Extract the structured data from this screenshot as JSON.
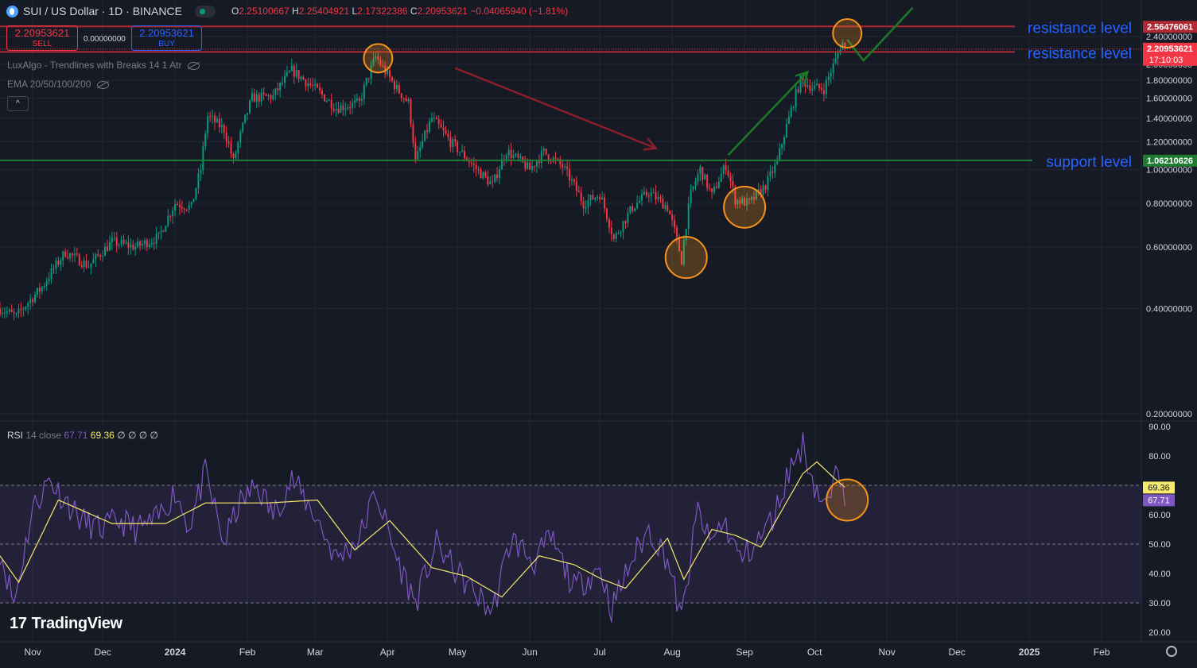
{
  "header": {
    "symbol": "SUI / US Dollar · 1D · BINANCE",
    "open_key": "O",
    "open": "2.25100667",
    "high_key": "H",
    "high": "2.25404921",
    "low_key": "L",
    "low": "2.17322386",
    "close_key": "C",
    "close": "2.20953621",
    "change": "−0.04065940 (−1.81%)"
  },
  "trade": {
    "sell_price": "2.20953621",
    "sell_label": "SELL",
    "spread": "0.00000000",
    "buy_price": "2.20953621",
    "buy_label": "BUY"
  },
  "indicators": [
    {
      "label": "LuxAlgo - Trendlines with Breaks 14 1 Atr"
    },
    {
      "label": "EMA 20/50/100/200"
    }
  ],
  "collapse_glyph": "^",
  "rsi_legend": {
    "name": "RSI",
    "params": "14 close",
    "rsi": "67.71",
    "ma": "69.36",
    "extra": "∅ ∅ ∅ ∅"
  },
  "branding": {
    "logo_mark": "17",
    "name": "TradingView"
  },
  "colors": {
    "background": "#161a25",
    "grid": "#232632",
    "up": "#089981",
    "down": "#f23645",
    "resistance": "#b22833",
    "support": "#1e7d32",
    "annotation_text": "#2962ff",
    "circle": "#f7931a",
    "arrow_red": "#8b1e2b",
    "arrow_green": "#1c7a26",
    "rsi": "#7e57c2",
    "rsi_ma": "#f7e96b"
  },
  "chart_data": [
    {
      "type": "candlestick",
      "title": "SUI / US Dollar · 1D · BINANCE",
      "yscale": "log",
      "ylim": [
        0.18,
        2.8
      ],
      "y_ticks": [
        "0.20000000",
        "0.40000000",
        "0.60000000",
        "0.80000000",
        "1.00000000",
        "1.20000000",
        "1.40000000",
        "1.60000000",
        "1.80000000",
        "2.00000000",
        "2.40000000"
      ],
      "y_tick_values": [
        0.2,
        0.4,
        0.6,
        0.8,
        1.0,
        1.2,
        1.4,
        1.6,
        1.8,
        2.0,
        2.4
      ],
      "x_ticks": [
        "Nov",
        "Dec",
        "2024",
        "Feb",
        "Mar",
        "Apr",
        "May",
        "Jun",
        "Jul",
        "Aug",
        "Sep",
        "Oct",
        "Nov",
        "Dec",
        "2025",
        "Feb"
      ],
      "x_tick_dates": [
        "2023-11-01",
        "2023-12-01",
        "2024-01-01",
        "2024-02-01",
        "2024-03-01",
        "2024-04-01",
        "2024-05-01",
        "2024-06-01",
        "2024-07-01",
        "2024-08-01",
        "2024-09-01",
        "2024-10-01",
        "2024-11-01",
        "2024-12-01",
        "2025-01-01",
        "2025-02-01"
      ],
      "xlim": [
        "2023-10-18",
        "2025-02-18"
      ],
      "price_anchors": [
        {
          "date": "2023-10-18",
          "price": 0.4
        },
        {
          "date": "2023-10-25",
          "price": 0.38
        },
        {
          "date": "2023-11-05",
          "price": 0.46
        },
        {
          "date": "2023-11-15",
          "price": 0.58
        },
        {
          "date": "2023-11-25",
          "price": 0.53
        },
        {
          "date": "2023-12-05",
          "price": 0.62
        },
        {
          "date": "2023-12-15",
          "price": 0.6
        },
        {
          "date": "2023-12-25",
          "price": 0.64
        },
        {
          "date": "2024-01-01",
          "price": 0.8
        },
        {
          "date": "2024-01-08",
          "price": 0.78
        },
        {
          "date": "2024-01-12",
          "price": 1.0
        },
        {
          "date": "2024-01-15",
          "price": 1.42
        },
        {
          "date": "2024-01-22",
          "price": 1.3
        },
        {
          "date": "2024-01-26",
          "price": 1.05
        },
        {
          "date": "2024-02-03",
          "price": 1.6
        },
        {
          "date": "2024-02-12",
          "price": 1.62
        },
        {
          "date": "2024-02-20",
          "price": 1.92
        },
        {
          "date": "2024-03-01",
          "price": 1.7
        },
        {
          "date": "2024-03-10",
          "price": 1.5
        },
        {
          "date": "2024-03-20",
          "price": 1.55
        },
        {
          "date": "2024-03-27",
          "price": 2.1
        },
        {
          "date": "2024-03-30",
          "price": 1.95
        },
        {
          "date": "2024-04-05",
          "price": 1.7
        },
        {
          "date": "2024-04-10",
          "price": 1.55
        },
        {
          "date": "2024-04-13",
          "price": 1.05
        },
        {
          "date": "2024-04-20",
          "price": 1.4
        },
        {
          "date": "2024-04-28",
          "price": 1.2
        },
        {
          "date": "2024-05-08",
          "price": 1.02
        },
        {
          "date": "2024-05-16",
          "price": 0.9
        },
        {
          "date": "2024-05-22",
          "price": 1.13
        },
        {
          "date": "2024-06-01",
          "price": 1.0
        },
        {
          "date": "2024-06-07",
          "price": 1.12
        },
        {
          "date": "2024-06-15",
          "price": 1.02
        },
        {
          "date": "2024-06-24",
          "price": 0.8
        },
        {
          "date": "2024-07-01",
          "price": 0.85
        },
        {
          "date": "2024-07-07",
          "price": 0.63
        },
        {
          "date": "2024-07-15",
          "price": 0.78
        },
        {
          "date": "2024-07-22",
          "price": 0.86
        },
        {
          "date": "2024-07-30",
          "price": 0.78
        },
        {
          "date": "2024-08-05",
          "price": 0.55
        },
        {
          "date": "2024-08-09",
          "price": 0.85
        },
        {
          "date": "2024-08-13",
          "price": 1.0
        },
        {
          "date": "2024-08-18",
          "price": 0.84
        },
        {
          "date": "2024-08-24",
          "price": 1.03
        },
        {
          "date": "2024-08-28",
          "price": 0.82
        },
        {
          "date": "2024-09-03",
          "price": 0.8
        },
        {
          "date": "2024-09-10",
          "price": 0.9
        },
        {
          "date": "2024-09-15",
          "price": 1.05
        },
        {
          "date": "2024-09-20",
          "price": 1.4
        },
        {
          "date": "2024-09-25",
          "price": 1.8
        },
        {
          "date": "2024-09-30",
          "price": 1.72
        },
        {
          "date": "2024-10-05",
          "price": 1.7
        },
        {
          "date": "2024-10-10",
          "price": 2.05
        },
        {
          "date": "2024-10-12",
          "price": 2.25
        },
        {
          "date": "2024-10-13",
          "price": 2.3
        },
        {
          "date": "2024-10-14",
          "price": 2.21
        }
      ],
      "price_points_note": "",
      "horizontal_levels": [
        {
          "label": "resistance level",
          "value": 2.56476061,
          "badge": "2.56476061",
          "color": "#b22833"
        },
        {
          "label": "resistance level",
          "value": 2.16936242,
          "badge": "2.16936242",
          "color": "#b22833"
        },
        {
          "label": "support level",
          "value": 1.06210626,
          "badge": "1.06210626",
          "color": "#1e7d32"
        }
      ],
      "last_price": {
        "value": 2.20953621,
        "badge": "2.20953621",
        "countdown": "17:10:03"
      },
      "circles": [
        {
          "date": "2024-03-28",
          "price": 2.08
        },
        {
          "date": "2024-08-07",
          "price": 0.56
        },
        {
          "date": "2024-09-01",
          "price": 0.78
        },
        {
          "date": "2024-10-15",
          "price": 2.45
        }
      ],
      "arrows": [
        {
          "color": "red",
          "from": {
            "date": "2024-04-30",
            "price": 1.95
          },
          "to": {
            "date": "2024-07-25",
            "price": 1.15
          }
        },
        {
          "color": "green",
          "from": {
            "date": "2024-08-25",
            "price": 1.1
          },
          "to": {
            "date": "2024-09-28",
            "price": 1.9
          }
        },
        {
          "color": "green",
          "path": [
            {
              "date": "2024-10-15",
              "price": 2.35
            },
            {
              "date": "2024-10-22",
              "price": 2.05
            },
            {
              "date": "2024-11-12",
              "price": 2.9
            }
          ]
        }
      ]
    },
    {
      "type": "line",
      "title": "RSI",
      "ylim": [
        18,
        92
      ],
      "y_ticks": [
        "20.00",
        "30.00",
        "40.00",
        "50.00",
        "60.00",
        "70.00",
        "80.00",
        "90.00"
      ],
      "y_tick_values": [
        20,
        30,
        40,
        50,
        60,
        70,
        80,
        90
      ],
      "band": [
        30,
        70
      ],
      "midline": 50,
      "rsi_anchors": [
        {
          "date": "2023-10-18",
          "value": 48
        },
        {
          "date": "2023-10-24",
          "value": 30
        },
        {
          "date": "2023-11-01",
          "value": 62
        },
        {
          "date": "2023-11-08",
          "value": 72
        },
        {
          "date": "2023-11-15",
          "value": 65
        },
        {
          "date": "2023-11-22",
          "value": 58
        },
        {
          "date": "2023-11-30",
          "value": 55
        },
        {
          "date": "2023-12-08",
          "value": 58
        },
        {
          "date": "2023-12-16",
          "value": 55
        },
        {
          "date": "2023-12-24",
          "value": 58
        },
        {
          "date": "2024-01-01",
          "value": 68
        },
        {
          "date": "2024-01-07",
          "value": 56
        },
        {
          "date": "2024-01-14",
          "value": 74
        },
        {
          "date": "2024-01-22",
          "value": 50
        },
        {
          "date": "2024-01-28",
          "value": 63
        },
        {
          "date": "2024-02-05",
          "value": 70
        },
        {
          "date": "2024-02-12",
          "value": 60
        },
        {
          "date": "2024-02-20",
          "value": 72
        },
        {
          "date": "2024-03-01",
          "value": 60
        },
        {
          "date": "2024-03-10",
          "value": 45
        },
        {
          "date": "2024-03-20",
          "value": 52
        },
        {
          "date": "2024-03-27",
          "value": 68
        },
        {
          "date": "2024-04-05",
          "value": 45
        },
        {
          "date": "2024-04-13",
          "value": 30
        },
        {
          "date": "2024-04-22",
          "value": 50
        },
        {
          "date": "2024-05-01",
          "value": 40
        },
        {
          "date": "2024-05-10",
          "value": 32
        },
        {
          "date": "2024-05-16",
          "value": 27
        },
        {
          "date": "2024-05-24",
          "value": 52
        },
        {
          "date": "2024-06-03",
          "value": 44
        },
        {
          "date": "2024-06-10",
          "value": 52
        },
        {
          "date": "2024-06-20",
          "value": 35
        },
        {
          "date": "2024-07-01",
          "value": 42
        },
        {
          "date": "2024-07-06",
          "value": 28
        },
        {
          "date": "2024-07-15",
          "value": 45
        },
        {
          "date": "2024-07-22",
          "value": 55
        },
        {
          "date": "2024-07-30",
          "value": 45
        },
        {
          "date": "2024-08-05",
          "value": 24
        },
        {
          "date": "2024-08-12",
          "value": 62
        },
        {
          "date": "2024-08-17",
          "value": 50
        },
        {
          "date": "2024-08-23",
          "value": 58
        },
        {
          "date": "2024-08-30",
          "value": 45
        },
        {
          "date": "2024-09-06",
          "value": 50
        },
        {
          "date": "2024-09-14",
          "value": 60
        },
        {
          "date": "2024-09-20",
          "value": 75
        },
        {
          "date": "2024-09-26",
          "value": 84
        },
        {
          "date": "2024-10-01",
          "value": 70
        },
        {
          "date": "2024-10-06",
          "value": 62
        },
        {
          "date": "2024-10-10",
          "value": 72
        },
        {
          "date": "2024-10-13",
          "value": 74
        },
        {
          "date": "2024-10-14",
          "value": 67.71
        }
      ],
      "ma_anchors": [
        {
          "date": "2023-10-18",
          "value": 46
        },
        {
          "date": "2023-10-26",
          "value": 37
        },
        {
          "date": "2023-11-12",
          "value": 65
        },
        {
          "date": "2023-12-05",
          "value": 57
        },
        {
          "date": "2023-12-28",
          "value": 57
        },
        {
          "date": "2024-01-14",
          "value": 64
        },
        {
          "date": "2024-02-10",
          "value": 64
        },
        {
          "date": "2024-03-02",
          "value": 65
        },
        {
          "date": "2024-03-18",
          "value": 48
        },
        {
          "date": "2024-04-02",
          "value": 58
        },
        {
          "date": "2024-04-20",
          "value": 42
        },
        {
          "date": "2024-05-05",
          "value": 39
        },
        {
          "date": "2024-05-20",
          "value": 32
        },
        {
          "date": "2024-06-05",
          "value": 46
        },
        {
          "date": "2024-06-20",
          "value": 43
        },
        {
          "date": "2024-07-02",
          "value": 38
        },
        {
          "date": "2024-07-12",
          "value": 35
        },
        {
          "date": "2024-07-30",
          "value": 52
        },
        {
          "date": "2024-08-06",
          "value": 38
        },
        {
          "date": "2024-08-18",
          "value": 55
        },
        {
          "date": "2024-08-28",
          "value": 53
        },
        {
          "date": "2024-09-08",
          "value": 49
        },
        {
          "date": "2024-09-26",
          "value": 74
        },
        {
          "date": "2024-10-02",
          "value": 78
        },
        {
          "date": "2024-10-10",
          "value": 72
        },
        {
          "date": "2024-10-14",
          "value": 69.36
        }
      ],
      "last_rsi": {
        "value": 67.71,
        "badge": "67.71"
      },
      "last_ma": {
        "value": 69.36,
        "badge": "69.36"
      },
      "circles": [
        {
          "date": "2024-10-15",
          "value": 65
        }
      ]
    }
  ]
}
